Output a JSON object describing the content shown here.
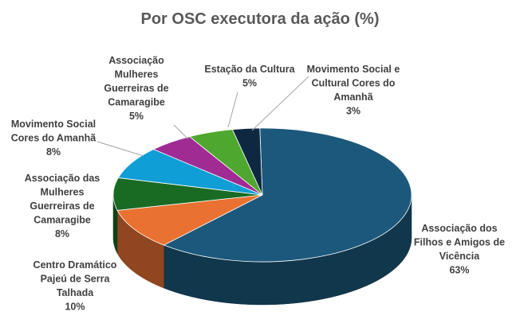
{
  "chart_data": {
    "type": "pie",
    "title": "Por OSC executora da ação (%)",
    "slices": [
      {
        "label": "Associação dos Filhos e Amigos de Vicência",
        "value": 63,
        "value_label": "63%",
        "color": "#1b587c"
      },
      {
        "label": "Centro Dramático Pajeú de Serra Talhada",
        "value": 10,
        "value_label": "10%",
        "color": "#e97132"
      },
      {
        "label": "Associação das Mulheres Guerreiras de Camaragibe",
        "value": 8,
        "value_label": "8%",
        "color": "#196b24"
      },
      {
        "label": "Movimento Social Cores do Amanhã",
        "value": 8,
        "value_label": "8%",
        "color": "#0f9ed5"
      },
      {
        "label": "Associação Mulheres Guerreiras de Camaragibe",
        "value": 5,
        "value_label": "5%",
        "color": "#a02b93"
      },
      {
        "label": "Estação da Cultura",
        "value": 5,
        "value_label": "5%",
        "color": "#4ea72e"
      },
      {
        "label": "Movimento Social e Cultural Cores do Amanhã",
        "value": 3,
        "value_label": "3%",
        "color": "#0e2841"
      }
    ],
    "legend": "none",
    "data_labels": "outside"
  }
}
